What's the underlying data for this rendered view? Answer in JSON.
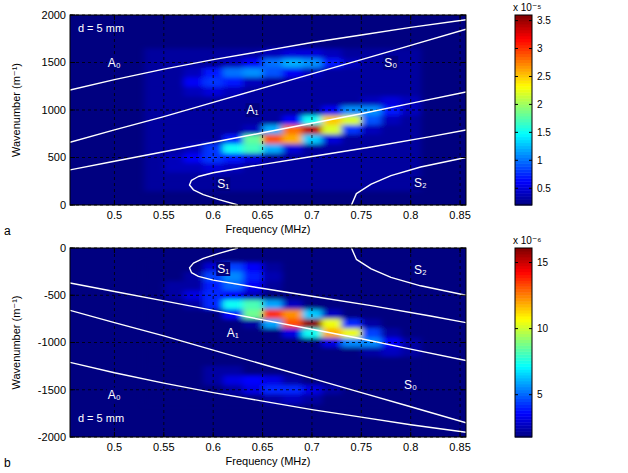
{
  "chart_data": [
    {
      "type": "heatmap",
      "panel_label": "a",
      "annotation": "d = 5 mm",
      "xlabel": "Frequency (MHz)",
      "ylabel": "Wavenumber (m⁻¹)",
      "xlim": [
        0.455,
        0.856
      ],
      "xticks": [
        0.5,
        0.55,
        0.6,
        0.65,
        0.7,
        0.75,
        0.8,
        0.85
      ],
      "ylim": [
        0,
        2000
      ],
      "yticks": [
        0,
        500,
        1000,
        1500,
        2000
      ],
      "grid": true,
      "heatmap": {
        "x": [
          0.54,
          0.56,
          0.58,
          0.6,
          0.62,
          0.64,
          0.66,
          0.68,
          0.7,
          0.72,
          0.74,
          0.76,
          0.78,
          0.8
        ],
        "y": [
          200,
          300,
          400,
          500,
          600,
          700,
          800,
          900,
          1000,
          1100,
          1200,
          1300,
          1400,
          1500,
          1600
        ],
        "values": [
          [
            0.3,
            0.3,
            0.3,
            0.3,
            0.3,
            0.3,
            0.3,
            0.3,
            0.3,
            0.3,
            0.3,
            0.3,
            0.3,
            0.3
          ],
          [
            0.3,
            0.3,
            0.3,
            0.3,
            0.3,
            0.3,
            0.3,
            0.3,
            0.3,
            0.3,
            0.3,
            0.3,
            0.3,
            0.3
          ],
          [
            0.3,
            0.4,
            0.4,
            0.5,
            0.4,
            0.3,
            0.3,
            0.3,
            0.3,
            0.3,
            0.3,
            0.3,
            0.3,
            0.3
          ],
          [
            0.3,
            0.4,
            0.6,
            0.8,
            0.7,
            0.5,
            0.3,
            0.3,
            0.3,
            0.3,
            0.3,
            0.3,
            0.3,
            0.3
          ],
          [
            0.3,
            0.3,
            0.4,
            0.8,
            1.5,
            1.7,
            1.2,
            0.5,
            0.3,
            0.3,
            0.3,
            0.3,
            0.3,
            0.3
          ],
          [
            0.3,
            0.3,
            0.3,
            0.3,
            0.7,
            1.8,
            2.9,
            2.6,
            1.3,
            0.5,
            0.3,
            0.3,
            0.3,
            0.3
          ],
          [
            0.3,
            0.3,
            0.3,
            0.3,
            0.3,
            0.4,
            1.2,
            2.8,
            3.4,
            2.2,
            0.8,
            0.4,
            0.3,
            0.3
          ],
          [
            0.3,
            0.3,
            0.3,
            0.3,
            0.3,
            0.3,
            0.3,
            0.6,
            1.5,
            2.5,
            2.2,
            0.9,
            0.4,
            0.3
          ],
          [
            0.3,
            0.3,
            0.3,
            0.3,
            0.3,
            0.3,
            0.3,
            0.3,
            0.3,
            0.6,
            1.1,
            1.1,
            0.7,
            0.4
          ],
          [
            0.3,
            0.3,
            0.3,
            0.3,
            0.3,
            0.3,
            0.3,
            0.3,
            0.3,
            0.3,
            0.3,
            0.4,
            0.5,
            0.4
          ],
          [
            0.3,
            0.3,
            0.4,
            0.5,
            0.4,
            0.3,
            0.3,
            0.3,
            0.3,
            0.3,
            0.3,
            0.3,
            0.3,
            0.3
          ],
          [
            0.3,
            0.3,
            0.6,
            0.8,
            0.7,
            0.4,
            0.3,
            0.3,
            0.3,
            0.3,
            0.3,
            0.3,
            0.3,
            0.3
          ],
          [
            0.3,
            0.3,
            0.4,
            0.7,
            1.0,
            1.1,
            0.9,
            0.6,
            0.4,
            0.3,
            0.3,
            0.3,
            0.3,
            0.3
          ],
          [
            0.3,
            0.3,
            0.3,
            0.3,
            0.4,
            0.6,
            1.0,
            1.2,
            1.1,
            0.7,
            0.4,
            0.3,
            0.3,
            0.3
          ],
          [
            0.3,
            0.3,
            0.3,
            0.3,
            0.3,
            0.3,
            0.4,
            0.5,
            0.5,
            0.4,
            0.3,
            0.3,
            0.3,
            0.3
          ]
        ],
        "colorbar": {
          "label": "x 10⁻⁵",
          "lim": [
            0.2,
            3.6
          ],
          "ticks": [
            0.5,
            1,
            1.5,
            2,
            2.5,
            3,
            3.5
          ]
        }
      },
      "series": [
        {
          "name": "A₀",
          "type": "line",
          "color": "#ffffff",
          "x": [
            0.455,
            0.5,
            0.55,
            0.6,
            0.65,
            0.7,
            0.75,
            0.8,
            0.856
          ],
          "values": [
            1210,
            1320,
            1430,
            1530,
            1620,
            1710,
            1790,
            1870,
            1950
          ]
        },
        {
          "name": "S₀",
          "type": "line",
          "color": "#ffffff",
          "x": [
            0.455,
            0.5,
            0.55,
            0.6,
            0.65,
            0.7,
            0.75,
            0.8,
            0.856
          ],
          "values": [
            660,
            790,
            930,
            1080,
            1230,
            1380,
            1530,
            1680,
            1850
          ]
        },
        {
          "name": "A₁",
          "type": "line",
          "color": "#ffffff",
          "x": [
            0.455,
            0.5,
            0.55,
            0.6,
            0.65,
            0.7,
            0.75,
            0.8,
            0.856
          ],
          "values": [
            370,
            460,
            560,
            660,
            760,
            860,
            960,
            1070,
            1190
          ]
        },
        {
          "name": "S₁",
          "type": "line",
          "color": "#ffffff",
          "x": [
            0.625,
            0.605,
            0.59,
            0.58,
            0.576,
            0.578,
            0.585,
            0.6,
            0.64,
            0.7,
            0.76,
            0.82,
            0.856
          ],
          "values": [
            0,
            60,
            110,
            160,
            210,
            260,
            300,
            340,
            410,
            510,
            610,
            720,
            790
          ]
        },
        {
          "name": "S₂",
          "type": "line",
          "color": "#ffffff",
          "x": [
            0.74,
            0.745,
            0.76,
            0.78,
            0.81,
            0.856
          ],
          "values": [
            0,
            120,
            220,
            310,
            400,
            500
          ]
        }
      ]
    },
    {
      "type": "heatmap",
      "panel_label": "b",
      "annotation": "d = 5 mm",
      "xlabel": "Frequency (MHz)",
      "ylabel": "Wavenumber (m⁻¹)",
      "xlim": [
        0.455,
        0.856
      ],
      "xticks": [
        0.5,
        0.55,
        0.6,
        0.65,
        0.7,
        0.75,
        0.8,
        0.85
      ],
      "ylim": [
        -2000,
        0
      ],
      "yticks": [
        -2000,
        -1500,
        -1000,
        -500,
        0
      ],
      "grid": true,
      "heatmap": {
        "x": [
          0.54,
          0.56,
          0.58,
          0.6,
          0.62,
          0.64,
          0.66,
          0.68,
          0.7,
          0.72,
          0.74,
          0.76,
          0.78,
          0.8
        ],
        "y": [
          -200,
          -300,
          -400,
          -500,
          -600,
          -700,
          -800,
          -900,
          -1000,
          -1100,
          -1200,
          -1300,
          -1400,
          -1500,
          -1600
        ],
        "values": [
          [
            1.8,
            1.8,
            1.8,
            3.0,
            4.5,
            3.5,
            2.2,
            1.8,
            1.8,
            1.8,
            1.8,
            1.8,
            1.8,
            1.8
          ],
          [
            1.8,
            1.8,
            2.3,
            4.5,
            5.5,
            4.0,
            2.5,
            1.8,
            1.8,
            1.8,
            1.8,
            1.8,
            1.8,
            1.8
          ],
          [
            1.8,
            2.3,
            2.3,
            4.0,
            5.0,
            3.5,
            2.2,
            1.8,
            1.8,
            1.8,
            1.8,
            1.8,
            1.8,
            1.8
          ],
          [
            1.8,
            2.3,
            3.2,
            4.1,
            3.6,
            2.7,
            1.8,
            1.8,
            1.8,
            1.8,
            1.8,
            1.8,
            1.8,
            1.8
          ],
          [
            1.8,
            1.8,
            2.3,
            4.1,
            7.3,
            8.2,
            5.9,
            2.7,
            1.8,
            1.8,
            1.8,
            1.8,
            1.8,
            1.8
          ],
          [
            1.8,
            1.8,
            1.8,
            1.8,
            3.6,
            8.7,
            13.7,
            12.3,
            6.4,
            2.7,
            1.8,
            1.8,
            1.8,
            1.8
          ],
          [
            1.8,
            1.8,
            1.8,
            1.8,
            1.8,
            2.3,
            5.9,
            13.2,
            16.0,
            10.5,
            4.1,
            2.3,
            1.8,
            1.8
          ],
          [
            1.8,
            1.8,
            1.8,
            1.8,
            1.8,
            1.8,
            1.8,
            3.2,
            7.3,
            11.9,
            10.5,
            4.5,
            2.3,
            1.8
          ],
          [
            1.8,
            1.8,
            1.8,
            1.8,
            1.8,
            1.8,
            1.8,
            1.8,
            1.8,
            3.2,
            5.5,
            5.5,
            3.6,
            2.3
          ],
          [
            1.8,
            1.8,
            1.8,
            1.8,
            1.8,
            1.8,
            1.8,
            1.8,
            1.8,
            1.8,
            1.8,
            2.3,
            2.7,
            2.3
          ],
          [
            1.8,
            1.8,
            1.8,
            1.8,
            1.8,
            1.8,
            1.8,
            1.8,
            1.8,
            1.8,
            1.8,
            1.8,
            1.8,
            1.8
          ],
          [
            1.8,
            1.8,
            1.8,
            2.3,
            2.3,
            1.8,
            1.8,
            1.8,
            1.8,
            1.8,
            1.8,
            1.8,
            1.8,
            1.8
          ],
          [
            1.8,
            1.8,
            1.8,
            2.3,
            3.2,
            3.6,
            3.2,
            2.3,
            1.8,
            1.8,
            1.8,
            1.8,
            1.8,
            1.8
          ],
          [
            1.8,
            1.8,
            1.8,
            1.8,
            2.3,
            3.2,
            4.1,
            4.1,
            3.2,
            2.3,
            1.8,
            1.8,
            1.8,
            1.8
          ],
          [
            1.8,
            1.8,
            1.8,
            1.8,
            1.8,
            1.8,
            2.3,
            2.7,
            2.3,
            1.8,
            1.8,
            1.8,
            1.8,
            1.8
          ]
        ],
        "colorbar": {
          "label": "x 10⁻⁶",
          "lim": [
            1.8,
            16.1
          ],
          "ticks": [
            5,
            10,
            15
          ]
        }
      },
      "series": [
        {
          "name": "A₀",
          "type": "line",
          "color": "#ffffff",
          "x": [
            0.455,
            0.5,
            0.55,
            0.6,
            0.65,
            0.7,
            0.75,
            0.8,
            0.856
          ],
          "values": [
            -1210,
            -1320,
            -1430,
            -1530,
            -1620,
            -1710,
            -1790,
            -1870,
            -1950
          ]
        },
        {
          "name": "S₀",
          "type": "line",
          "color": "#ffffff",
          "x": [
            0.455,
            0.5,
            0.55,
            0.6,
            0.65,
            0.7,
            0.75,
            0.8,
            0.856
          ],
          "values": [
            -660,
            -790,
            -930,
            -1080,
            -1230,
            -1380,
            -1530,
            -1680,
            -1850
          ]
        },
        {
          "name": "A₁",
          "type": "line",
          "color": "#ffffff",
          "x": [
            0.455,
            0.5,
            0.55,
            0.6,
            0.65,
            0.7,
            0.75,
            0.8,
            0.856
          ],
          "values": [
            -370,
            -460,
            -560,
            -660,
            -760,
            -860,
            -960,
            -1070,
            -1190
          ]
        },
        {
          "name": "S₁",
          "type": "line",
          "color": "#ffffff",
          "x": [
            0.625,
            0.605,
            0.59,
            0.58,
            0.576,
            0.578,
            0.585,
            0.6,
            0.64,
            0.7,
            0.76,
            0.82,
            0.856
          ],
          "values": [
            0,
            -60,
            -110,
            -160,
            -210,
            -260,
            -300,
            -340,
            -410,
            -510,
            -610,
            -720,
            -790
          ]
        },
        {
          "name": "S₂",
          "type": "line",
          "color": "#ffffff",
          "x": [
            0.74,
            0.745,
            0.76,
            0.78,
            0.81,
            0.856
          ],
          "values": [
            0,
            -120,
            -220,
            -310,
            -400,
            -500
          ]
        }
      ]
    }
  ]
}
